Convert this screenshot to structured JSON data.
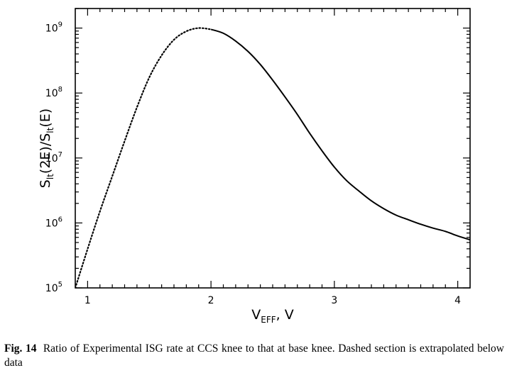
{
  "chart_data": {
    "type": "line",
    "title": "",
    "xlabel": {
      "main": "V",
      "sub": "EFF",
      "tail": ", V"
    },
    "ylabel": {
      "p1": "S",
      "s1": "lt",
      "p2": "(2E)/S",
      "s2": "lt",
      "p3": "(E)"
    },
    "xlim": [
      0.9,
      4.1
    ],
    "ylim": [
      100000,
      2000000000
    ],
    "yscale": "log",
    "xticks": [
      {
        "value": 1,
        "label": "1"
      },
      {
        "value": 2,
        "label": "2"
      },
      {
        "value": 3,
        "label": "3"
      },
      {
        "value": 4,
        "label": "4"
      }
    ],
    "yticks": [
      {
        "value": 100000,
        "base": "10",
        "exp": "5"
      },
      {
        "value": 1000000,
        "base": "10",
        "exp": "6"
      },
      {
        "value": 10000000,
        "base": "10",
        "exp": "7"
      },
      {
        "value": 100000000,
        "base": "10",
        "exp": "8"
      },
      {
        "value": 1000000000,
        "base": "10",
        "exp": "9"
      }
    ],
    "grid": false,
    "legend": "none",
    "series": [
      {
        "style": "dashed",
        "x": [
          0.9,
          1.0,
          1.1,
          1.2,
          1.3,
          1.4,
          1.5,
          1.6,
          1.7,
          1.8,
          1.9,
          2.0
        ],
        "y": [
          100000,
          398000,
          1510000,
          5250000,
          18200000,
          60300000,
          174000000,
          380000000,
          661000000,
          891000000,
          1000000000,
          955000000
        ]
      },
      {
        "style": "solid",
        "x": [
          2.0,
          2.1,
          2.2,
          2.3,
          2.4,
          2.5,
          2.6,
          2.7,
          2.8,
          2.9,
          3.0,
          3.1,
          3.2,
          3.3,
          3.4,
          3.5,
          3.6,
          3.7,
          3.8,
          3.9,
          4.0,
          4.1
        ],
        "y": [
          955000000,
          832000000,
          631000000,
          437000000,
          275000000,
          158000000,
          87100000,
          46800000,
          24000000,
          12900000,
          7240000,
          4470000,
          3090000,
          2190000,
          1660000,
          1320000,
          1120000,
          955000,
          832000,
          741000,
          631000,
          550000
        ]
      }
    ]
  },
  "caption": {
    "fig_number": "Fig. 14",
    "text": "Ratio of Experimental ISG rate at CCS knee to that at base knee. Dashed section is extrapolated below data"
  }
}
